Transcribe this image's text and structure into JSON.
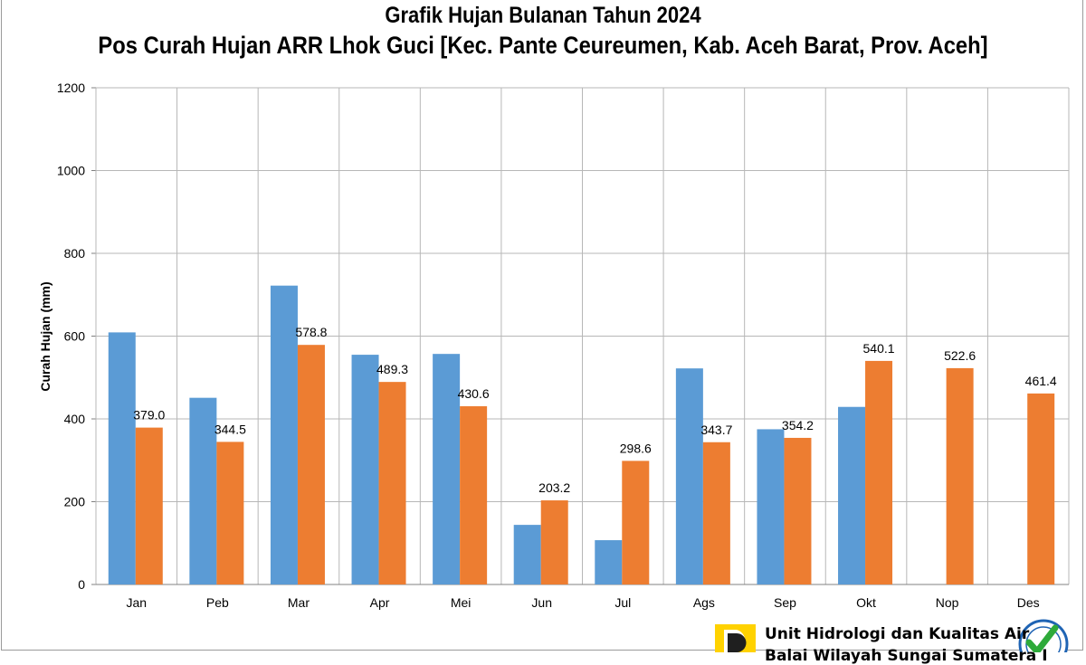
{
  "colors": {
    "series1": "#5b9bd5",
    "series2": "#ed7d31",
    "grid": "#b7b7b7",
    "axis": "#808080"
  },
  "chart_data": {
    "type": "bar",
    "title": "Grafik Hujan Bulanan Tahun 2024",
    "subtitle": "Pos Curah Hujan ARR Lhok Guci [Kec. Pante Ceureumen, Kab. Aceh Barat, Prov. Aceh]",
    "xlabel": "",
    "ylabel": "Curah Hujan (mm)",
    "ylim": [
      0,
      1200
    ],
    "yticks": [
      0,
      200,
      400,
      600,
      800,
      1000,
      1200
    ],
    "grid": true,
    "categories": [
      "Jan",
      "Peb",
      "Mar",
      "Apr",
      "Mei",
      "Jun",
      "Jul",
      "Ags",
      "Sep",
      "Okt",
      "Nop",
      "Des"
    ],
    "series": [
      {
        "values": [
          609,
          451,
          722,
          555,
          557,
          144,
          107,
          522,
          375,
          429,
          null,
          null
        ],
        "color": "#5b9bd5",
        "labels_shown": false
      },
      {
        "values": [
          379.0,
          344.5,
          578.8,
          489.3,
          430.6,
          203.2,
          298.6,
          343.7,
          354.2,
          540.1,
          522.6,
          461.4
        ],
        "color": "#ed7d31",
        "labels_shown": true
      }
    ]
  },
  "footer": {
    "line1": "Unit Hidrologi dan Kualitas Air",
    "line2": "Balai Wilayah Sungai Sumatera I",
    "logo_icon": "pu-logo-icon",
    "badge_icon": "iso-badge-icon"
  }
}
